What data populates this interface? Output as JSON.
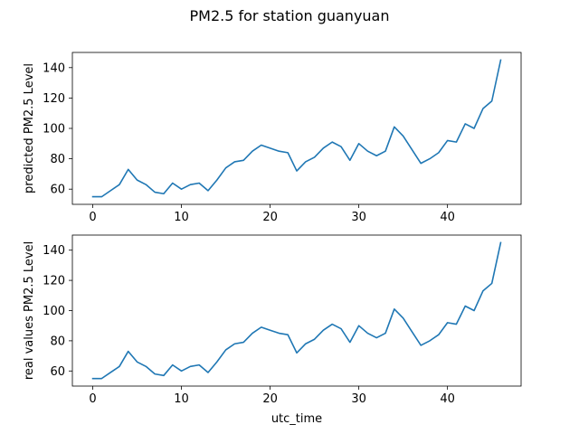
{
  "figure": {
    "title": "PM2.5 for station guanyuan",
    "line_color": "#1f77b4"
  },
  "chart_data": [
    {
      "type": "line",
      "xlabel": "",
      "ylabel": "predicted PM2.5 Level",
      "xlim": [
        -2.3,
        48.3
      ],
      "ylim": [
        50,
        150
      ],
      "xticks": [
        0,
        10,
        20,
        30,
        40
      ],
      "yticks": [
        60,
        80,
        100,
        120,
        140
      ],
      "grid": false,
      "series": [
        {
          "x": [
            0,
            1,
            2,
            3,
            4,
            5,
            6,
            7,
            8,
            9,
            10,
            11,
            12,
            13,
            14,
            15,
            16,
            17,
            18,
            19,
            20,
            21,
            22,
            23,
            24,
            25,
            26,
            27,
            28,
            29,
            30,
            31,
            32,
            33,
            34,
            35,
            36,
            37,
            38,
            39,
            40,
            41,
            42,
            43,
            44,
            45,
            46
          ],
          "values": [
            55,
            55,
            59,
            63,
            73,
            66,
            63,
            58,
            57,
            64,
            60,
            63,
            64,
            59,
            66,
            74,
            78,
            79,
            85,
            89,
            87,
            85,
            84,
            72,
            78,
            81,
            87,
            91,
            88,
            79,
            90,
            85,
            82,
            85,
            101,
            95,
            86,
            77,
            80,
            84,
            92,
            91,
            103,
            100,
            113,
            118,
            145
          ]
        }
      ]
    },
    {
      "type": "line",
      "xlabel": "utc_time",
      "ylabel": "real values PM2.5 Level",
      "xlim": [
        -2.3,
        48.3
      ],
      "ylim": [
        50,
        150
      ],
      "xticks": [
        0,
        10,
        20,
        30,
        40
      ],
      "yticks": [
        60,
        80,
        100,
        120,
        140
      ],
      "grid": false,
      "series": [
        {
          "x": [
            0,
            1,
            2,
            3,
            4,
            5,
            6,
            7,
            8,
            9,
            10,
            11,
            12,
            13,
            14,
            15,
            16,
            17,
            18,
            19,
            20,
            21,
            22,
            23,
            24,
            25,
            26,
            27,
            28,
            29,
            30,
            31,
            32,
            33,
            34,
            35,
            36,
            37,
            38,
            39,
            40,
            41,
            42,
            43,
            44,
            45,
            46
          ],
          "values": [
            55,
            55,
            59,
            63,
            73,
            66,
            63,
            58,
            57,
            64,
            60,
            63,
            64,
            59,
            66,
            74,
            78,
            79,
            85,
            89,
            87,
            85,
            84,
            72,
            78,
            81,
            87,
            91,
            88,
            79,
            90,
            85,
            82,
            85,
            101,
            95,
            86,
            77,
            80,
            84,
            92,
            91,
            103,
            100,
            113,
            118,
            145
          ]
        }
      ]
    }
  ]
}
